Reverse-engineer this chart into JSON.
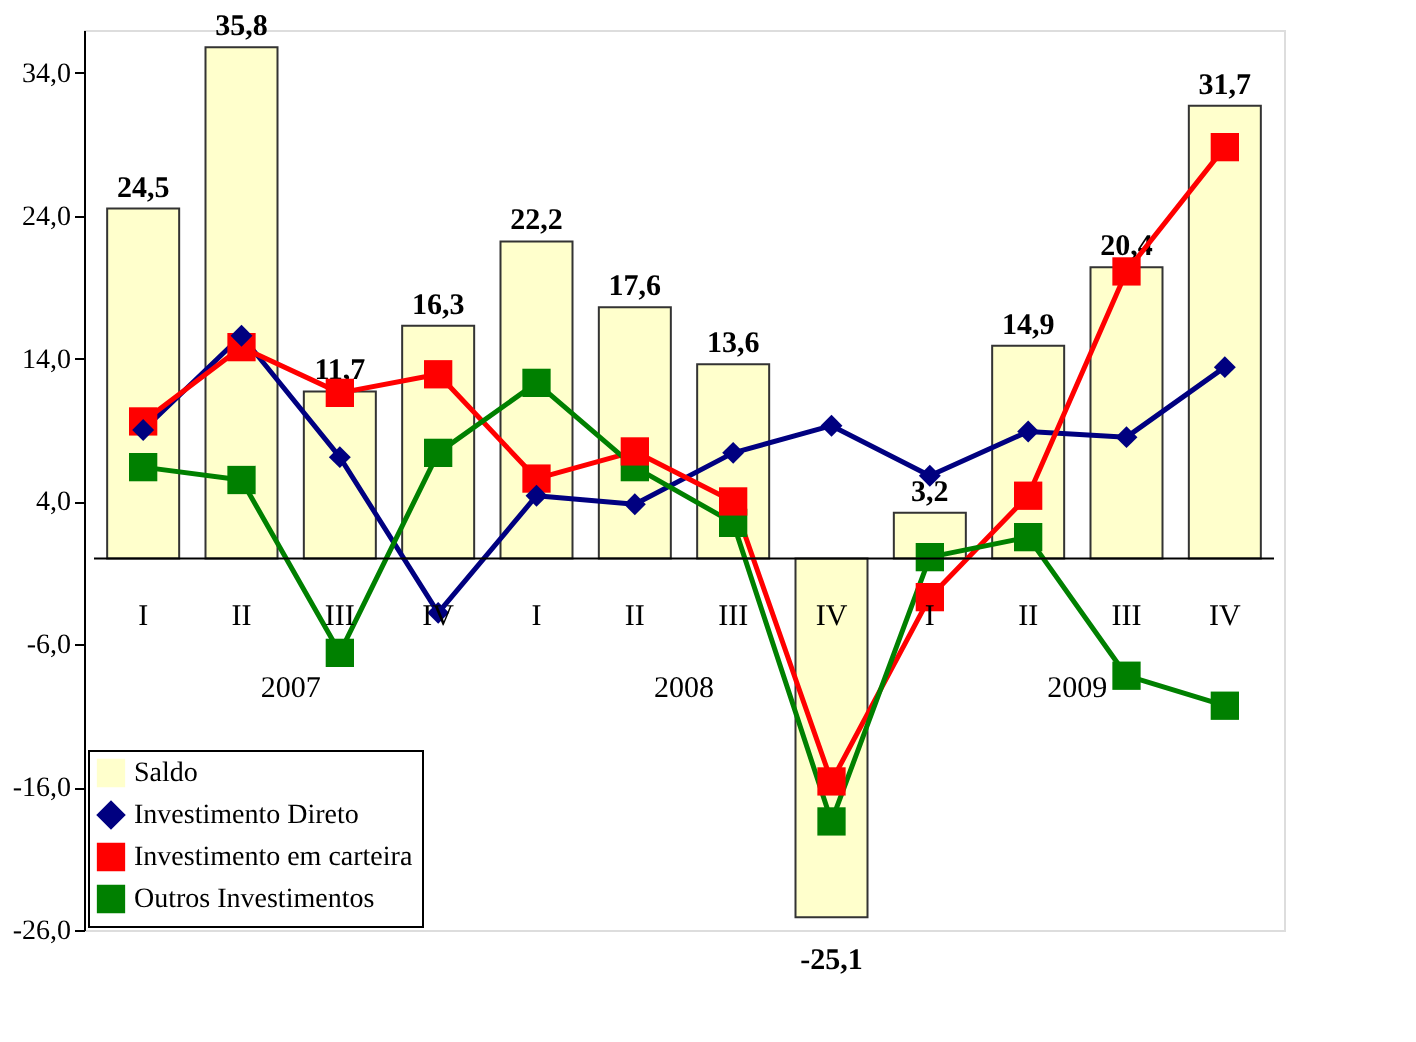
{
  "chart_data": {
    "type": "bar",
    "categories": [
      "I",
      "II",
      "III",
      "IV",
      "I",
      "II",
      "III",
      "IV",
      "I",
      "II",
      "III",
      "IV"
    ],
    "annotations": [
      "2007",
      "2008",
      "2009"
    ],
    "series": [
      {
        "name": "Saldo",
        "color": "#ffffcc",
        "values": [
          24.5,
          35.8,
          11.7,
          16.3,
          22.2,
          17.6,
          13.6,
          -25.1,
          3.2,
          14.9,
          20.4,
          31.7
        ],
        "value_labels": [
          "24,5",
          "35,8",
          "11,7",
          "16,3",
          "22,2",
          "17,6",
          "13,6",
          "-25,1",
          "3,2",
          "14,9",
          "20,4",
          "31,7"
        ]
      },
      {
        "name": "Investimento Direto",
        "type": "line",
        "marker": "diamond",
        "color": "#000080",
        "values": [
          9.0,
          15.6,
          7.1,
          -3.8,
          4.4,
          3.8,
          7.4,
          9.3,
          5.8,
          8.9,
          8.5,
          13.4
        ]
      },
      {
        "name": "Investimento em carteira",
        "type": "line",
        "marker": "square",
        "color": "#ff0000",
        "values": [
          9.6,
          14.8,
          11.6,
          12.9,
          5.6,
          7.5,
          4.0,
          -15.6,
          -2.7,
          4.4,
          20.1,
          28.8
        ]
      },
      {
        "name": "Outros Investimentos",
        "type": "line",
        "marker": "square",
        "color": "#008000",
        "values": [
          6.4,
          5.5,
          -6.6,
          7.4,
          12.3,
          6.4,
          2.5,
          -18.4,
          0.1,
          1.5,
          -8.2,
          -10.3
        ]
      }
    ],
    "ylim": [
      -26,
      37
    ],
    "yticks": [
      {
        "value": 34,
        "label": "34,0"
      },
      {
        "value": 24,
        "label": "24,0"
      },
      {
        "value": 14,
        "label": "14,0"
      },
      {
        "value": 4,
        "label": "4,0"
      },
      {
        "value": -6,
        "label": "-6,0"
      },
      {
        "value": -16,
        "label": "-16,0"
      },
      {
        "value": -26,
        "label": "-26,0"
      }
    ],
    "grid": false,
    "legend": "bottom left"
  }
}
